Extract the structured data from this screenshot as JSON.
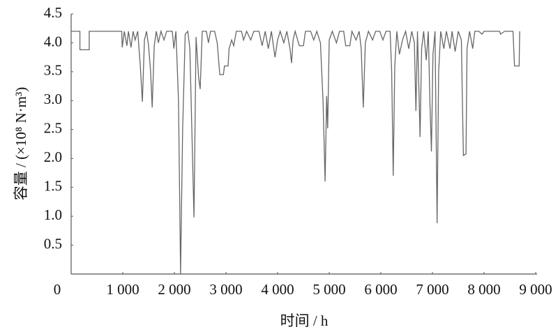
{
  "chart_data": {
    "type": "line",
    "xlabel": "时间 / h",
    "ylabel": "容量 / (×10⁸ N·m³)",
    "x": [
      0,
      170,
      170,
      350,
      350,
      980,
      990,
      1030,
      1080,
      1110,
      1160,
      1200,
      1240,
      1290,
      1340,
      1380,
      1420,
      1460,
      1500,
      1540,
      1570,
      1610,
      1650,
      1690,
      1740,
      1800,
      1850,
      1960,
      1990,
      2030,
      2080,
      2120,
      2160,
      2210,
      2260,
      2300,
      2380,
      2420,
      2470,
      2500,
      2540,
      2620,
      2660,
      2700,
      2780,
      2830,
      2880,
      2950,
      2970,
      3040,
      3060,
      3110,
      3150,
      3200,
      3300,
      3340,
      3400,
      3480,
      3540,
      3640,
      3700,
      3760,
      3820,
      3880,
      3950,
      4000,
      4050,
      4120,
      4180,
      4240,
      4270,
      4300,
      4340,
      4420,
      4500,
      4540,
      4640,
      4700,
      4760,
      4830,
      4880,
      4920,
      4950,
      4970,
      5000,
      5060,
      5140,
      5200,
      5280,
      5320,
      5400,
      5440,
      5520,
      5580,
      5620,
      5660,
      5700,
      5760,
      5840,
      5900,
      5980,
      6040,
      6100,
      6180,
      6210,
      6240,
      6270,
      6310,
      6360,
      6420,
      6480,
      6540,
      6600,
      6650,
      6680,
      6710,
      6760,
      6790,
      6830,
      6880,
      6920,
      6950,
      6980,
      7010,
      7050,
      7090,
      7120,
      7160,
      7220,
      7270,
      7340,
      7380,
      7440,
      7500,
      7560,
      7580,
      7600,
      7650,
      7670,
      7720,
      7780,
      7820,
      7900,
      7960,
      8000,
      8300,
      8320,
      8400,
      8560,
      8590,
      8680,
      8690
    ],
    "values": [
      4.2,
      4.2,
      3.88,
      3.88,
      4.2,
      4.2,
      3.92,
      4.2,
      3.95,
      4.2,
      3.92,
      4.2,
      4.05,
      4.2,
      3.6,
      2.98,
      4.05,
      4.2,
      3.95,
      3.5,
      2.88,
      3.95,
      4.2,
      4.0,
      4.2,
      4.05,
      4.2,
      4.2,
      3.9,
      4.2,
      3.0,
      0.0,
      2.5,
      4.15,
      4.2,
      3.9,
      0.98,
      4.1,
      3.4,
      3.2,
      4.2,
      4.2,
      4.0,
      4.2,
      4.2,
      4.0,
      3.45,
      3.45,
      3.6,
      3.6,
      3.9,
      4.05,
      3.95,
      4.2,
      4.2,
      4.05,
      4.2,
      4.05,
      4.2,
      4.2,
      3.95,
      4.2,
      3.9,
      4.2,
      3.75,
      4.05,
      4.2,
      4.0,
      4.2,
      3.9,
      3.65,
      4.05,
      4.2,
      3.95,
      3.95,
      4.2,
      4.2,
      4.05,
      4.2,
      4.0,
      3.0,
      1.6,
      3.08,
      2.52,
      4.05,
      4.2,
      4.0,
      4.2,
      4.2,
      3.95,
      3.95,
      4.2,
      4.05,
      4.2,
      3.9,
      2.88,
      4.0,
      4.2,
      4.05,
      4.2,
      4.2,
      4.05,
      4.2,
      4.2,
      3.5,
      1.7,
      3.6,
      4.2,
      3.8,
      4.05,
      4.2,
      3.9,
      4.2,
      4.0,
      2.82,
      4.2,
      2.37,
      3.9,
      4.2,
      3.7,
      4.2,
      3.0,
      2.12,
      3.8,
      4.2,
      0.88,
      3.5,
      4.2,
      3.9,
      4.2,
      3.9,
      4.2,
      3.85,
      4.2,
      4.05,
      3.0,
      2.05,
      2.08,
      3.9,
      4.2,
      3.9,
      4.2,
      4.2,
      4.15,
      4.2,
      4.2,
      4.15,
      4.2,
      4.2,
      3.6,
      3.6,
      4.2
    ],
    "color": "#666666",
    "xlim": [
      0,
      9000
    ],
    "xticks": [
      0,
      {
        "value": 1000,
        "label": "1 000"
      },
      {
        "value": 2000,
        "label": "2 000"
      },
      {
        "value": 3000,
        "label": "3 000"
      },
      {
        "value": 4000,
        "label": "4 000"
      },
      {
        "value": 5000,
        "label": "5 000"
      },
      {
        "value": 6000,
        "label": "6 000"
      },
      {
        "value": 7000,
        "label": "7 000"
      },
      {
        "value": 8000,
        "label": "8 000"
      },
      {
        "value": 9000,
        "label": "9 000"
      }
    ],
    "ylim": [
      0,
      4.5
    ],
    "yticks": [
      0.5,
      {
        "value": 1,
        "label": "1.0"
      },
      1.5,
      {
        "value": 2,
        "label": "2.0"
      },
      2.5,
      {
        "value": 3,
        "label": "3.0"
      },
      3.5,
      {
        "value": 4,
        "label": "4.0"
      },
      4.5
    ],
    "grid": false
  }
}
